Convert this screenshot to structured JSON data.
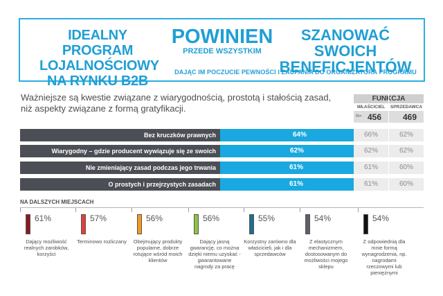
{
  "header": {
    "left_lines": [
      "IDEALNY PROGRAM",
      "LOJALNOŚCIOWY",
      "NA RYNKU B2B"
    ],
    "middle_big": "POWINIEN",
    "middle_small": "PRZEDE WSZYSTKIM",
    "right_lines": [
      "SZANOWAĆ SWOICH",
      "BENEFICJENTÓW"
    ],
    "subtitle": "DAJĄC IM POCZUCIE PEWNOŚCI I ZAUFANIA DO ORGANIZATORA PROGRAMU"
  },
  "intro_lines": [
    "Ważniejsze są kwestie związane z wiarygodnością, prostotą i stałością zasad,",
    "niż aspekty związane z formą gratyfikacji."
  ],
  "table": {
    "title": "FUNKCJA",
    "col1": "WŁAŚCICIEL",
    "col2": "SPRZEDAWCA",
    "n_label": "N=",
    "n1": "456",
    "n2": "469"
  },
  "colors": {
    "accent": "#1aa8e0",
    "dark_label": "#4b4f55",
    "further": [
      "#8b1a1a",
      "#e0403a",
      "#f59a1e",
      "#8cc63f",
      "#1f6e8c",
      "#5b6068",
      "#111111"
    ]
  },
  "chart_data": [
    {
      "type": "bar",
      "orientation": "horizontal",
      "categories": [
        "Bez kruczków prawnych",
        "Wiarygodny – gdzie producent wywiązuje się ze swoich zobowiązań",
        "Nie zmieniający zasad podczas jego trwania",
        "O prostych i przejrzystych zasadach"
      ],
      "values": [
        64,
        62,
        61,
        61
      ],
      "value_labels": [
        "64%",
        "62%",
        "61%",
        "61%"
      ],
      "breakdown": {
        "WŁAŚCICIEL": [
          "66%",
          "62%",
          "61%",
          "61%"
        ],
        "SPRZEDAWCA": [
          "62%",
          "62%",
          "60%",
          "60%"
        ]
      }
    },
    {
      "type": "bar",
      "title": "NA DALSZYCH MIEJSCACH",
      "categories": [
        "Dający możliwość realnych zarobków, korzyści",
        "Terminowo rozliczany",
        "Obejmujący produkty popularne, dobrze rotujące wśród moich klientów",
        "Dający jasną gwarancję, co można dzięki niemu uzyskać - gwarantowane nagrody za pracę",
        "Korzystny zarówno dla właścicieli, jak i dla sprzedawców",
        "Z elastycznym mechanizmem, dostosowanym do możliwości mojego sklepu",
        "Z odpowiednią dla mnie formą wynagrodzenia, np. nagrodami rzeczowymi lub pieniężnymi"
      ],
      "values": [
        61,
        57,
        56,
        56,
        55,
        54,
        54
      ],
      "value_labels": [
        "61%",
        "57%",
        "56%",
        "56%",
        "55%",
        "54%",
        "54%"
      ]
    }
  ]
}
